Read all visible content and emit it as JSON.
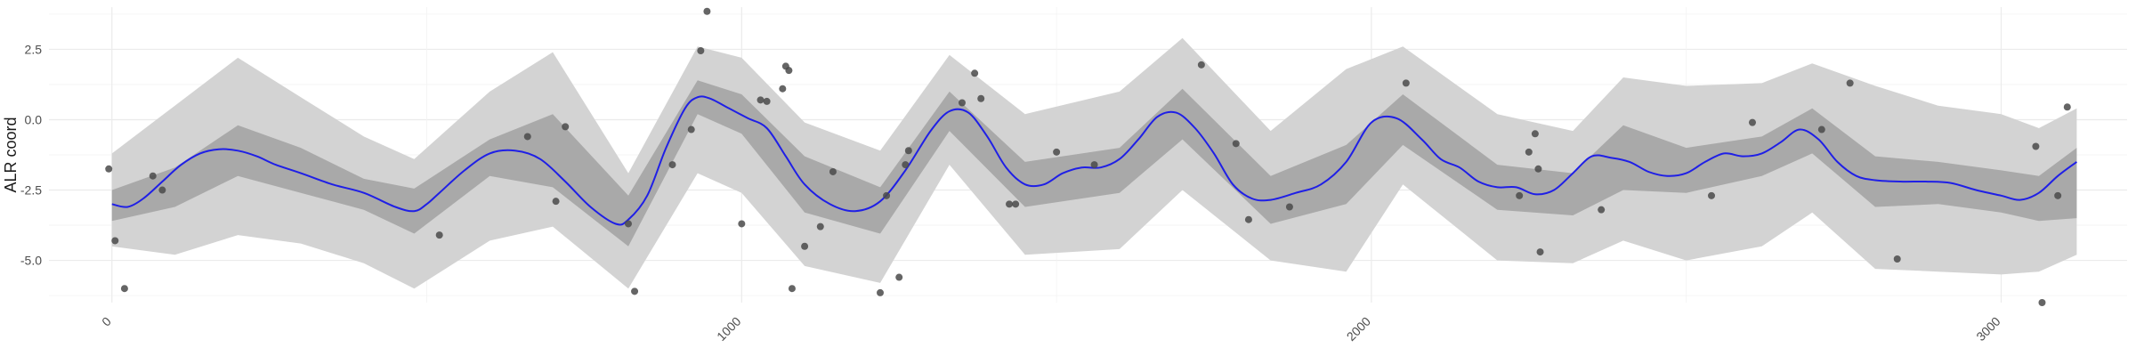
{
  "chart_data": {
    "type": "line",
    "title": "",
    "xlabel": "",
    "ylabel": "ALR coord",
    "xlim": [
      -100,
      3200
    ],
    "ylim": [
      -6.5,
      4.0
    ],
    "x_ticks": [
      0,
      1000,
      2000,
      3000
    ],
    "x_tick_labels": [
      "0",
      "1000",
      "2000",
      "3000"
    ],
    "y_ticks": [
      2.5,
      0.0,
      -2.5,
      -5.0
    ],
    "y_tick_labels": [
      "2.5",
      "0.0",
      "-2.5",
      "-5.0"
    ],
    "grid": true,
    "legend": "none",
    "colors": {
      "trend_line": "#1f1fe6",
      "inner_band": "#a9a9a9",
      "outer_band": "#d3d3d3",
      "points": "#4a4a4a",
      "grid": "#ebebeb"
    },
    "trend": {
      "x": [
        0,
        25,
        50,
        80,
        110,
        140,
        170,
        200,
        230,
        260,
        300,
        350,
        400,
        450,
        480,
        500,
        520,
        560,
        600,
        640,
        680,
        720,
        760,
        800,
        820,
        850,
        880,
        910,
        930,
        950,
        980,
        1010,
        1040,
        1070,
        1100,
        1140,
        1180,
        1220,
        1260,
        1300,
        1330,
        1360,
        1390,
        1420,
        1450,
        1480,
        1510,
        1540,
        1570,
        1600,
        1630,
        1660,
        1690,
        1720,
        1750,
        1780,
        1810,
        1840,
        1880,
        1920,
        1960,
        2000,
        2040,
        2080,
        2110,
        2140,
        2170,
        2200,
        2230,
        2260,
        2290,
        2320,
        2350,
        2380,
        2410,
        2440,
        2470,
        2500,
        2530,
        2560,
        2590,
        2620,
        2650,
        2680,
        2710,
        2740,
        2770,
        2800,
        2840,
        2880,
        2920,
        2960,
        3000,
        3030,
        3060,
        3090,
        3120
      ],
      "y": [
        -3.0,
        -3.1,
        -2.8,
        -2.2,
        -1.6,
        -1.2,
        -1.05,
        -1.1,
        -1.3,
        -1.6,
        -1.9,
        -2.3,
        -2.6,
        -3.1,
        -3.25,
        -3.0,
        -2.6,
        -1.8,
        -1.2,
        -1.1,
        -1.4,
        -2.2,
        -3.1,
        -3.7,
        -3.55,
        -2.7,
        -1.0,
        0.4,
        0.8,
        0.75,
        0.4,
        0.05,
        -0.3,
        -1.3,
        -2.3,
        -3.0,
        -3.25,
        -2.9,
        -1.8,
        -0.4,
        0.3,
        0.25,
        -0.6,
        -1.7,
        -2.3,
        -2.3,
        -1.9,
        -1.7,
        -1.7,
        -1.4,
        -0.7,
        0.1,
        0.25,
        -0.3,
        -1.2,
        -2.3,
        -2.8,
        -2.85,
        -2.6,
        -2.3,
        -1.5,
        -0.1,
        0.05,
        -0.7,
        -1.4,
        -1.7,
        -2.2,
        -2.4,
        -2.4,
        -2.65,
        -2.5,
        -1.9,
        -1.3,
        -1.35,
        -1.5,
        -1.85,
        -2.0,
        -1.9,
        -1.5,
        -1.2,
        -1.3,
        -1.2,
        -0.8,
        -0.35,
        -0.7,
        -1.5,
        -2.0,
        -2.15,
        -2.2,
        -2.2,
        -2.25,
        -2.5,
        -2.7,
        -2.85,
        -2.6,
        -2.0,
        -1.5
      ]
    },
    "inner_band": {
      "x": [
        0,
        100,
        200,
        300,
        400,
        480,
        600,
        700,
        820,
        930,
        1000,
        1100,
        1220,
        1330,
        1450,
        1600,
        1700,
        1840,
        1960,
        2050,
        2200,
        2320,
        2400,
        2500,
        2620,
        2700,
        2800,
        2900,
        3000,
        3060,
        3120
      ],
      "upper": [
        -2.5,
        -1.7,
        -0.2,
        -1.0,
        -2.1,
        -2.45,
        -0.7,
        0.2,
        -2.7,
        1.4,
        0.9,
        -1.3,
        -2.4,
        1.0,
        -1.5,
        -1.0,
        1.1,
        -2.0,
        -0.9,
        0.9,
        -1.6,
        -1.9,
        -0.2,
        -1.0,
        -0.6,
        0.4,
        -1.3,
        -1.5,
        -1.8,
        -2.0,
        -1.0
      ],
      "lower": [
        -3.6,
        -3.1,
        -2.0,
        -2.6,
        -3.2,
        -4.05,
        -2.0,
        -2.4,
        -4.5,
        0.2,
        -0.5,
        -3.3,
        -4.05,
        -0.4,
        -3.1,
        -2.6,
        -0.7,
        -3.7,
        -3.0,
        -0.9,
        -3.2,
        -3.4,
        -2.5,
        -2.6,
        -2.0,
        -1.2,
        -3.1,
        -3.0,
        -3.3,
        -3.6,
        -3.5
      ]
    },
    "outer_band": {
      "x": [
        0,
        100,
        200,
        300,
        400,
        480,
        600,
        700,
        820,
        930,
        1000,
        1100,
        1220,
        1330,
        1450,
        1600,
        1700,
        1840,
        1960,
        2050,
        2200,
        2320,
        2400,
        2500,
        2620,
        2700,
        2800,
        2900,
        3000,
        3060,
        3120
      ],
      "upper": [
        -1.2,
        0.5,
        2.2,
        0.8,
        -0.6,
        -1.4,
        1.0,
        2.4,
        -1.9,
        2.6,
        2.2,
        -0.1,
        -1.1,
        2.3,
        0.2,
        1.0,
        2.9,
        -0.4,
        1.8,
        2.6,
        0.2,
        -0.4,
        1.5,
        1.2,
        1.3,
        2.0,
        1.2,
        0.5,
        0.2,
        -0.3,
        0.4
      ],
      "lower": [
        -4.5,
        -4.8,
        -4.1,
        -4.4,
        -5.1,
        -6.0,
        -4.3,
        -3.8,
        -6.0,
        -1.9,
        -2.6,
        -5.2,
        -5.8,
        -1.6,
        -4.8,
        -4.6,
        -2.5,
        -5.0,
        -5.4,
        -2.3,
        -5.0,
        -5.1,
        -4.3,
        -5.0,
        -4.5,
        -3.3,
        -5.3,
        -5.4,
        -5.5,
        -5.4,
        -4.8
      ]
    },
    "points": [
      {
        "x": -5,
        "y": -1.75
      },
      {
        "x": 5,
        "y": -4.3
      },
      {
        "x": 20,
        "y": -6.0
      },
      {
        "x": 65,
        "y": -2.0
      },
      {
        "x": 80,
        "y": -2.5
      },
      {
        "x": 520,
        "y": -4.1
      },
      {
        "x": 660,
        "y": -0.6
      },
      {
        "x": 705,
        "y": -2.9
      },
      {
        "x": 720,
        "y": -0.25
      },
      {
        "x": 820,
        "y": -3.7
      },
      {
        "x": 830,
        "y": -6.1
      },
      {
        "x": 890,
        "y": -1.6
      },
      {
        "x": 920,
        "y": -0.35
      },
      {
        "x": 935,
        "y": 2.45
      },
      {
        "x": 945,
        "y": 3.85
      },
      {
        "x": 1000,
        "y": -3.7
      },
      {
        "x": 1030,
        "y": 0.7
      },
      {
        "x": 1040,
        "y": 0.65
      },
      {
        "x": 1065,
        "y": 1.1
      },
      {
        "x": 1070,
        "y": 1.9
      },
      {
        "x": 1075,
        "y": 1.75
      },
      {
        "x": 1080,
        "y": -6.0
      },
      {
        "x": 1100,
        "y": -4.5
      },
      {
        "x": 1125,
        "y": -3.8
      },
      {
        "x": 1145,
        "y": -1.85
      },
      {
        "x": 1220,
        "y": -6.15
      },
      {
        "x": 1230,
        "y": -2.7
      },
      {
        "x": 1250,
        "y": -5.6
      },
      {
        "x": 1260,
        "y": -1.6
      },
      {
        "x": 1265,
        "y": -1.1
      },
      {
        "x": 1350,
        "y": 0.6
      },
      {
        "x": 1370,
        "y": 1.65
      },
      {
        "x": 1380,
        "y": 0.75
      },
      {
        "x": 1425,
        "y": -3.0
      },
      {
        "x": 1435,
        "y": -3.0
      },
      {
        "x": 1500,
        "y": -1.15
      },
      {
        "x": 1560,
        "y": -1.6
      },
      {
        "x": 1730,
        "y": 1.95
      },
      {
        "x": 1785,
        "y": -0.85
      },
      {
        "x": 1805,
        "y": -3.55
      },
      {
        "x": 1870,
        "y": -3.1
      },
      {
        "x": 2055,
        "y": 1.3
      },
      {
        "x": 2235,
        "y": -2.7
      },
      {
        "x": 2250,
        "y": -1.15
      },
      {
        "x": 2260,
        "y": -0.5
      },
      {
        "x": 2265,
        "y": -1.75
      },
      {
        "x": 2268,
        "y": -4.7
      },
      {
        "x": 2365,
        "y": -3.2
      },
      {
        "x": 2540,
        "y": -2.7
      },
      {
        "x": 2605,
        "y": -0.1
      },
      {
        "x": 2715,
        "y": -0.35
      },
      {
        "x": 2760,
        "y": 1.3
      },
      {
        "x": 2835,
        "y": -4.95
      },
      {
        "x": 3055,
        "y": -0.95
      },
      {
        "x": 3065,
        "y": -6.5
      },
      {
        "x": 3090,
        "y": -2.7
      },
      {
        "x": 3105,
        "y": 0.45
      }
    ]
  }
}
